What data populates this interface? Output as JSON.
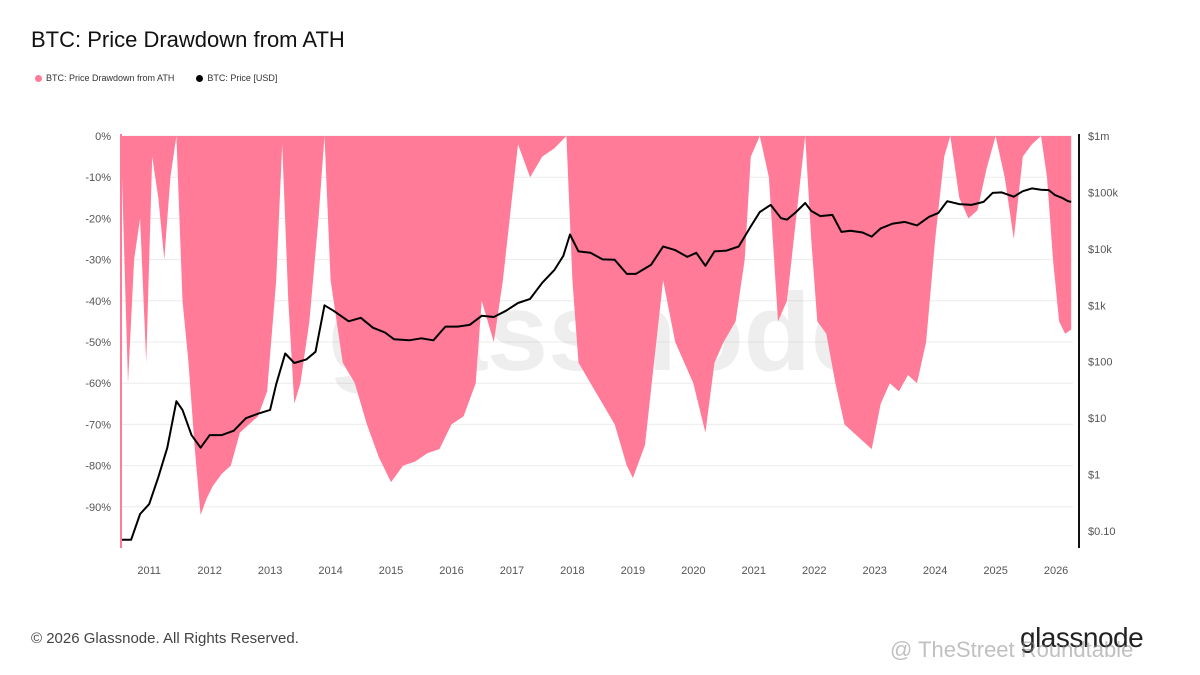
{
  "title": "BTC: Price Drawdown from ATH",
  "legend": [
    {
      "label": "BTC: Price Drawdown from ATH",
      "color": "#ff7b97"
    },
    {
      "label": "BTC: Price [USD]",
      "color": "#000000"
    }
  ],
  "footer": {
    "copyright": "© 2026 Glassnode. All Rights Reserved.",
    "brand": "glassnode",
    "overlay_mark": "@ TheStreet Roundtable",
    "watermark": "glassnode"
  },
  "chart_data": {
    "type": "area",
    "title": "BTC: Price Drawdown from ATH",
    "x_ticks": [
      "2011",
      "2012",
      "2013",
      "2014",
      "2015",
      "2016",
      "2017",
      "2018",
      "2019",
      "2020",
      "2021",
      "2022",
      "2023",
      "2024",
      "2025",
      "2026"
    ],
    "y_left_ticks": [
      "0%",
      "-10%",
      "-20%",
      "-30%",
      "-40%",
      "-50%",
      "-60%",
      "-70%",
      "-80%",
      "-90%"
    ],
    "y_left_range": [
      -100,
      0
    ],
    "y_right_ticks": [
      "$1m",
      "$100k",
      "$10k",
      "$1k",
      "$100",
      "$10",
      "$1",
      "$0.10"
    ],
    "y_right_scale": "log",
    "y_right_range": [
      0.05,
      1000000
    ],
    "grid": true,
    "legend_position": "top-left",
    "series": [
      {
        "name": "BTC: Price Drawdown from ATH",
        "axis": "left",
        "color": "#ff7b97",
        "style": "area",
        "points": [
          [
            2010.55,
            -10
          ],
          [
            2010.65,
            -60
          ],
          [
            2010.75,
            -30
          ],
          [
            2010.85,
            -20
          ],
          [
            2010.95,
            -55
          ],
          [
            2011.05,
            -5
          ],
          [
            2011.15,
            -15
          ],
          [
            2011.25,
            -30
          ],
          [
            2011.35,
            -10
          ],
          [
            2011.45,
            0
          ],
          [
            2011.55,
            -40
          ],
          [
            2011.65,
            -55
          ],
          [
            2011.75,
            -75
          ],
          [
            2011.85,
            -92
          ],
          [
            2011.95,
            -88
          ],
          [
            2012.05,
            -85
          ],
          [
            2012.2,
            -82
          ],
          [
            2012.35,
            -80
          ],
          [
            2012.5,
            -72
          ],
          [
            2012.65,
            -70
          ],
          [
            2012.8,
            -68
          ],
          [
            2012.95,
            -62
          ],
          [
            2013.1,
            -35
          ],
          [
            2013.2,
            -2
          ],
          [
            2013.3,
            -40
          ],
          [
            2013.4,
            -65
          ],
          [
            2013.5,
            -60
          ],
          [
            2013.65,
            -45
          ],
          [
            2013.8,
            -20
          ],
          [
            2013.9,
            0
          ],
          [
            2014.0,
            -35
          ],
          [
            2014.2,
            -55
          ],
          [
            2014.4,
            -60
          ],
          [
            2014.6,
            -70
          ],
          [
            2014.8,
            -78
          ],
          [
            2015.0,
            -84
          ],
          [
            2015.2,
            -80
          ],
          [
            2015.4,
            -79
          ],
          [
            2015.6,
            -77
          ],
          [
            2015.8,
            -76
          ],
          [
            2016.0,
            -70
          ],
          [
            2016.2,
            -68
          ],
          [
            2016.4,
            -60
          ],
          [
            2016.5,
            -40
          ],
          [
            2016.7,
            -50
          ],
          [
            2016.85,
            -35
          ],
          [
            2017.0,
            -15
          ],
          [
            2017.1,
            -2
          ],
          [
            2017.3,
            -10
          ],
          [
            2017.5,
            -5
          ],
          [
            2017.7,
            -3
          ],
          [
            2017.9,
            0
          ],
          [
            2018.0,
            -35
          ],
          [
            2018.1,
            -55
          ],
          [
            2018.3,
            -60
          ],
          [
            2018.5,
            -65
          ],
          [
            2018.7,
            -70
          ],
          [
            2018.9,
            -80
          ],
          [
            2019.0,
            -83
          ],
          [
            2019.2,
            -75
          ],
          [
            2019.35,
            -55
          ],
          [
            2019.5,
            -35
          ],
          [
            2019.7,
            -50
          ],
          [
            2019.85,
            -55
          ],
          [
            2020.0,
            -60
          ],
          [
            2020.2,
            -72
          ],
          [
            2020.35,
            -55
          ],
          [
            2020.5,
            -50
          ],
          [
            2020.7,
            -45
          ],
          [
            2020.85,
            -30
          ],
          [
            2020.95,
            -5
          ],
          [
            2021.1,
            0
          ],
          [
            2021.25,
            -10
          ],
          [
            2021.4,
            -45
          ],
          [
            2021.55,
            -40
          ],
          [
            2021.7,
            -20
          ],
          [
            2021.85,
            0
          ],
          [
            2021.95,
            -25
          ],
          [
            2022.05,
            -45
          ],
          [
            2022.2,
            -48
          ],
          [
            2022.35,
            -60
          ],
          [
            2022.5,
            -70
          ],
          [
            2022.65,
            -72
          ],
          [
            2022.8,
            -74
          ],
          [
            2022.95,
            -76
          ],
          [
            2023.1,
            -65
          ],
          [
            2023.25,
            -60
          ],
          [
            2023.4,
            -62
          ],
          [
            2023.55,
            -58
          ],
          [
            2023.7,
            -60
          ],
          [
            2023.85,
            -50
          ],
          [
            2024.0,
            -25
          ],
          [
            2024.15,
            -5
          ],
          [
            2024.25,
            0
          ],
          [
            2024.4,
            -15
          ],
          [
            2024.55,
            -20
          ],
          [
            2024.7,
            -18
          ],
          [
            2024.85,
            -8
          ],
          [
            2025.0,
            0
          ],
          [
            2025.15,
            -10
          ],
          [
            2025.3,
            -25
          ],
          [
            2025.45,
            -5
          ],
          [
            2025.6,
            -2
          ],
          [
            2025.75,
            0
          ],
          [
            2025.85,
            -10
          ],
          [
            2025.95,
            -30
          ],
          [
            2026.05,
            -45
          ],
          [
            2026.15,
            -48
          ],
          [
            2026.25,
            -47
          ]
        ]
      },
      {
        "name": "BTC: Price [USD]",
        "axis": "right",
        "color": "#000000",
        "style": "line",
        "points": [
          [
            2010.55,
            0.07
          ],
          [
            2010.7,
            0.07
          ],
          [
            2010.85,
            0.2
          ],
          [
            2011.0,
            0.3
          ],
          [
            2011.15,
            0.9
          ],
          [
            2011.3,
            3
          ],
          [
            2011.45,
            20
          ],
          [
            2011.55,
            14
          ],
          [
            2011.7,
            5
          ],
          [
            2011.85,
            3
          ],
          [
            2012.0,
            5
          ],
          [
            2012.2,
            5
          ],
          [
            2012.4,
            6
          ],
          [
            2012.6,
            10
          ],
          [
            2012.8,
            12
          ],
          [
            2013.0,
            14
          ],
          [
            2013.1,
            40
          ],
          [
            2013.25,
            140
          ],
          [
            2013.4,
            95
          ],
          [
            2013.6,
            110
          ],
          [
            2013.75,
            150
          ],
          [
            2013.9,
            1000
          ],
          [
            2014.05,
            800
          ],
          [
            2014.3,
            520
          ],
          [
            2014.5,
            600
          ],
          [
            2014.7,
            400
          ],
          [
            2014.9,
            330
          ],
          [
            2015.05,
            250
          ],
          [
            2015.3,
            240
          ],
          [
            2015.5,
            260
          ],
          [
            2015.7,
            240
          ],
          [
            2015.9,
            420
          ],
          [
            2016.1,
            420
          ],
          [
            2016.3,
            450
          ],
          [
            2016.5,
            650
          ],
          [
            2016.7,
            620
          ],
          [
            2016.9,
            800
          ],
          [
            2017.1,
            1100
          ],
          [
            2017.3,
            1300
          ],
          [
            2017.5,
            2500
          ],
          [
            2017.7,
            4200
          ],
          [
            2017.85,
            7500
          ],
          [
            2017.96,
            18000
          ],
          [
            2018.1,
            9000
          ],
          [
            2018.3,
            8500
          ],
          [
            2018.5,
            6500
          ],
          [
            2018.7,
            6400
          ],
          [
            2018.9,
            3600
          ],
          [
            2019.05,
            3600
          ],
          [
            2019.3,
            5200
          ],
          [
            2019.5,
            11000
          ],
          [
            2019.7,
            9500
          ],
          [
            2019.9,
            7200
          ],
          [
            2020.05,
            8500
          ],
          [
            2020.2,
            5000
          ],
          [
            2020.35,
            9000
          ],
          [
            2020.55,
            9300
          ],
          [
            2020.75,
            11000
          ],
          [
            2020.95,
            25000
          ],
          [
            2021.1,
            45000
          ],
          [
            2021.28,
            60000
          ],
          [
            2021.45,
            35000
          ],
          [
            2021.55,
            33000
          ],
          [
            2021.7,
            45000
          ],
          [
            2021.85,
            65000
          ],
          [
            2021.95,
            47000
          ],
          [
            2022.1,
            38000
          ],
          [
            2022.3,
            40000
          ],
          [
            2022.45,
            20000
          ],
          [
            2022.6,
            21000
          ],
          [
            2022.8,
            19500
          ],
          [
            2022.95,
            16500
          ],
          [
            2023.1,
            23000
          ],
          [
            2023.3,
            28000
          ],
          [
            2023.5,
            30000
          ],
          [
            2023.7,
            26000
          ],
          [
            2023.9,
            37000
          ],
          [
            2024.05,
            43000
          ],
          [
            2024.2,
            70000
          ],
          [
            2024.4,
            62000
          ],
          [
            2024.6,
            60000
          ],
          [
            2024.8,
            68000
          ],
          [
            2024.95,
            98000
          ],
          [
            2025.1,
            100000
          ],
          [
            2025.3,
            84000
          ],
          [
            2025.45,
            105000
          ],
          [
            2025.6,
            118000
          ],
          [
            2025.75,
            112000
          ],
          [
            2025.88,
            110000
          ],
          [
            2025.98,
            90000
          ],
          [
            2026.1,
            80000
          ],
          [
            2026.2,
            70000
          ],
          [
            2026.25,
            68000
          ]
        ]
      }
    ]
  }
}
